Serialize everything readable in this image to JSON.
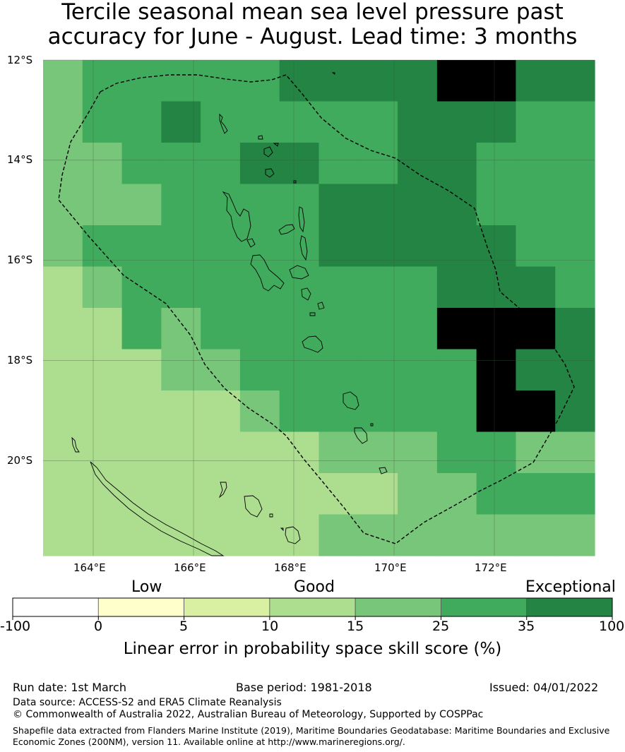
{
  "title": {
    "line1": "Tercile seasonal mean sea level pressure past",
    "line2": "accuracy for June - August. Lead time: 3 months"
  },
  "map": {
    "lat_labels": [
      "12°S",
      "14°S",
      "16°S",
      "18°S",
      "20°S"
    ],
    "lon_labels": [
      "164°E",
      "166°E",
      "168°E",
      "170°E",
      "172°E"
    ],
    "lon_range": [
      163,
      174
    ],
    "lat_range": [
      -21.9,
      -12
    ],
    "cell_size_deg": 0.833,
    "grid_cols": 14,
    "grid_rows": 12,
    "grid_classes": [
      "45555566667766",
      "45565555566655",
      "44555665566555",
      "44455556666555",
      "45555556666655",
      "34555555556665",
      "33545555557776",
      "33344555555766",
      "33333455555776",
      "33333334445544",
      "33333333344555",
      "33333334444444"
    ]
  },
  "colorbar": {
    "category_labels": [
      "Low",
      "Good",
      "Exceptional"
    ],
    "ticks": [
      "-100",
      "0",
      "5",
      "10",
      "15",
      "25",
      "35",
      "100"
    ],
    "colors": [
      "#ffffff",
      "#ffffcc",
      "#d9f0a3",
      "#addd8e",
      "#78c679",
      "#41ab5d",
      "#238443"
    ],
    "label": "Linear error in probability space skill score (%)"
  },
  "colors": {
    "eez_boundary": "#000000",
    "land_outline": "#000000",
    "gridline": "#3a5a3a"
  },
  "footer": {
    "run_date": "Run date: 1st March",
    "base_period": "Base period: 1981-2018",
    "issued": "Issued: 04/01/2022",
    "data_source": "Data source: ACCESS-S2 and ERA5 Climate Reanalysis",
    "copyright": "© Commonwealth of Australia 2022, Australian Bureau of Meteorology, Supported by COSPPac",
    "shapefile_line1": "Shapefile data extracted from Flanders Marine Institute (2019), Maritime Boundaries Geodatabase: Maritime Boundaries and Exclusive",
    "shapefile_line2": "Economic Zones (200NM), version 11. Available online at http://www.marineregions.org/."
  }
}
